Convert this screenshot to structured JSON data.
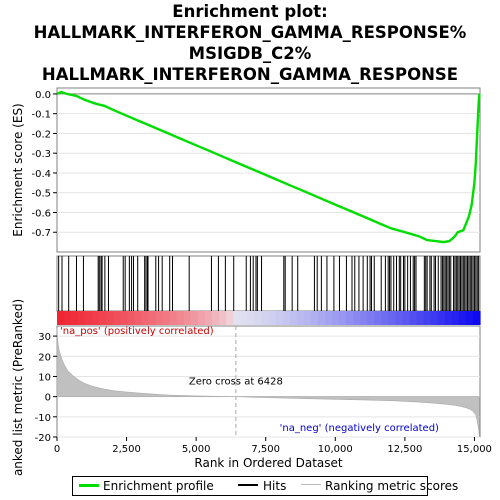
{
  "title_lines": [
    "Enrichment plot:",
    "HALLMARK_INTERFERON_GAMMA_RESPONSE%",
    "MSIGDB_C2%",
    "HALLMARK_INTERFERON_GAMMA_RESPONSE"
  ],
  "chart_data": [
    {
      "type": "line",
      "name": "enrichment-profile",
      "ylabel": "Enrichment score (ES)",
      "xlim": [
        0,
        15200
      ],
      "ylim": [
        -0.8,
        0.03
      ],
      "yticks": [
        0.0,
        -0.1,
        -0.2,
        -0.3,
        -0.4,
        -0.5,
        -0.6,
        -0.7
      ],
      "ytick_labels": [
        "0.0",
        "-0.1",
        "-0.2",
        "-0.3",
        "-0.4",
        "-0.5",
        "-0.6",
        "-0.7"
      ],
      "series": [
        {
          "name": "Enrichment profile",
          "color": "#00dd00",
          "x": [
            0,
            150,
            350,
            700,
            1000,
            1400,
            1700,
            2000,
            2500,
            3000,
            3500,
            4000,
            4500,
            5000,
            5500,
            6000,
            6500,
            7000,
            7500,
            8000,
            8500,
            9000,
            9500,
            10000,
            10500,
            11000,
            11500,
            12000,
            12500,
            13000,
            13300,
            13600,
            13900,
            14100,
            14300,
            14400,
            14600,
            14800,
            14900,
            15000,
            15050,
            15100,
            15150,
            15180
          ],
          "y": [
            0.0,
            0.01,
            0.0,
            -0.01,
            -0.03,
            -0.05,
            -0.06,
            -0.08,
            -0.11,
            -0.14,
            -0.17,
            -0.2,
            -0.23,
            -0.26,
            -0.29,
            -0.32,
            -0.35,
            -0.38,
            -0.41,
            -0.44,
            -0.47,
            -0.5,
            -0.53,
            -0.56,
            -0.59,
            -0.62,
            -0.65,
            -0.68,
            -0.7,
            -0.72,
            -0.74,
            -0.745,
            -0.75,
            -0.745,
            -0.72,
            -0.7,
            -0.69,
            -0.62,
            -0.56,
            -0.45,
            -0.35,
            -0.2,
            -0.05,
            0.0
          ]
        }
      ]
    },
    {
      "type": "scatter",
      "name": "hits",
      "xlim": [
        0,
        15200
      ],
      "hit_positions": [
        60,
        180,
        420,
        700,
        950,
        1480,
        1520,
        1580,
        1620,
        1720,
        1850,
        2380,
        2450,
        2600,
        2680,
        2750,
        2900,
        3150,
        3200,
        3250,
        3270,
        3550,
        3650,
        3780,
        4050,
        4150,
        4750,
        5550,
        5800,
        6050,
        6350,
        6800,
        6950,
        7050,
        7150,
        7200,
        7350,
        8150,
        8200,
        8450,
        8650,
        9250,
        9350,
        9500,
        9700,
        9950,
        10150,
        10400,
        10600,
        10700,
        10850,
        11000,
        11150,
        11250,
        11300,
        11400,
        11650,
        11800,
        11900,
        11950,
        12000,
        12100,
        12200,
        12300,
        12350,
        12450,
        12500,
        12600,
        12700,
        12800,
        12850,
        12900,
        13200,
        13250,
        13300,
        13400,
        13450,
        13550,
        13600,
        13700,
        13800,
        13850,
        13900,
        13950,
        14000,
        14050,
        14100,
        14150,
        14250,
        14300,
        14350,
        14400,
        14450,
        14500,
        14550,
        14600,
        14650,
        14700,
        14750,
        14800,
        14850,
        14900,
        14950,
        15000,
        15050,
        15100,
        15150
      ]
    },
    {
      "type": "area",
      "name": "ranking-metric",
      "ylabel": "Ranked list metric (PreRanked)",
      "xlabel": "Rank in Ordered Dataset",
      "xlim": [
        0,
        15200
      ],
      "ylim": [
        -20,
        35
      ],
      "yticks": [
        30,
        20,
        10,
        0,
        -10,
        -20
      ],
      "ytick_labels": [
        "30",
        "20",
        "10",
        "0",
        "-10",
        "-20"
      ],
      "xticks": [
        0,
        2500,
        5000,
        7500,
        10000,
        12500,
        15000
      ],
      "xtick_labels": [
        "0",
        "2,500",
        "5,000",
        "7,500",
        "10,000",
        "12,500",
        "15,000"
      ],
      "zero_cross": 6428,
      "zero_cross_label": "Zero cross at 6428",
      "pos_label": "'na_pos' (positively correlated)",
      "neg_label": "'na_neg' (negatively correlated)",
      "series": [
        {
          "name": "Ranking metric scores",
          "color": "#bbbbbb",
          "x": [
            0,
            30,
            80,
            150,
            250,
            400,
            600,
            800,
            1000,
            1300,
            1600,
            2000,
            2500,
            3000,
            3500,
            4000,
            5000,
            6000,
            6428,
            7000,
            8000,
            9000,
            10000,
            11000,
            12000,
            12500,
            13000,
            13500,
            14000,
            14300,
            14500,
            14700,
            14850,
            14950,
            15050,
            15100,
            15150,
            15180
          ],
          "y": [
            34,
            27,
            23,
            19.5,
            16,
            12.5,
            10,
            8,
            6.5,
            5,
            4,
            3,
            2.3,
            1.7,
            1.2,
            0.8,
            0.35,
            0.1,
            0,
            -0.3,
            -0.7,
            -1.0,
            -1.3,
            -1.6,
            -2.0,
            -2.3,
            -2.7,
            -3.2,
            -3.8,
            -4.3,
            -4.8,
            -5.5,
            -6.3,
            -7.2,
            -9,
            -12,
            -16,
            -20
          ]
        }
      ]
    }
  ],
  "legend": {
    "items": [
      {
        "label": "Enrichment profile",
        "color": "#00dd00"
      },
      {
        "label": "Hits",
        "color": "#000000"
      },
      {
        "label": "Ranking metric scores",
        "color": "#bbbbbb"
      }
    ]
  }
}
